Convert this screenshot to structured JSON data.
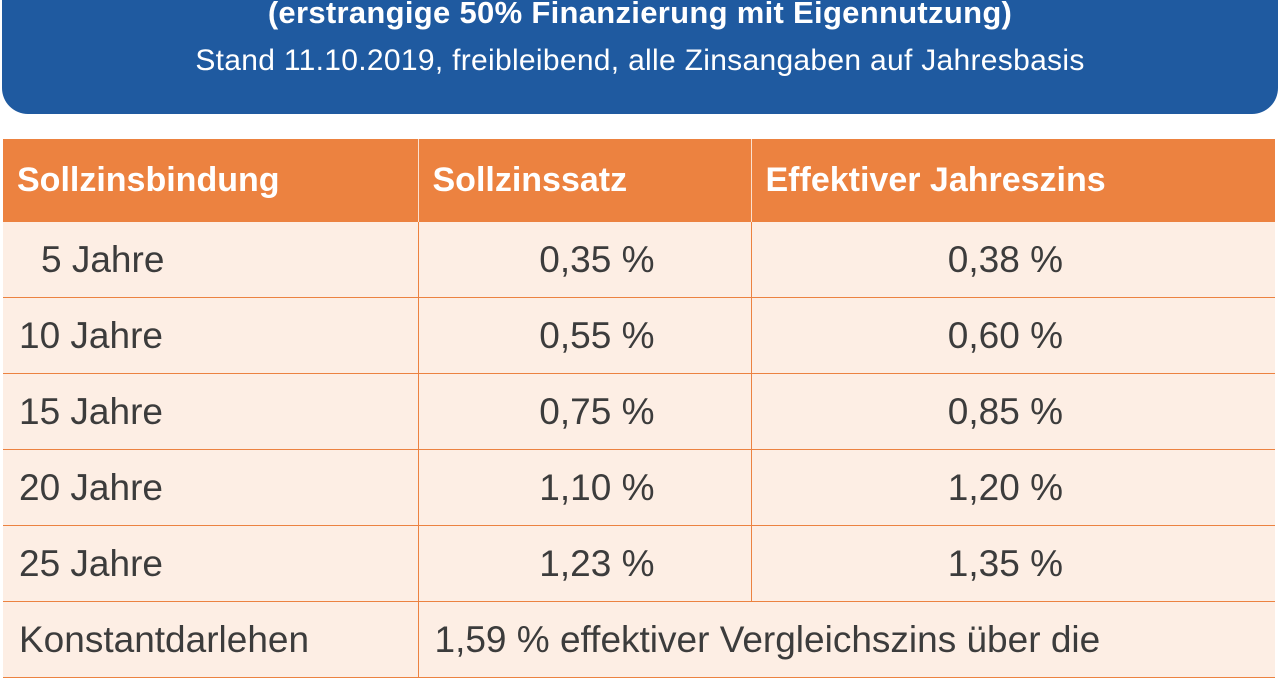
{
  "header": {
    "title": "(erstrangige 50% Finanzierung mit Eigennutzung)",
    "subtitle": "Stand 11.10.2019, freibleibend, alle Zinsangaben auf Jahresbasis"
  },
  "table": {
    "columns": [
      "Sollzinsbindung",
      "Sollzinssatz",
      "Effektiver Jahreszins"
    ],
    "rows": [
      {
        "term": "5 Jahre",
        "rate": "0,35 %",
        "effective": "0,38 %"
      },
      {
        "term": "10 Jahre",
        "rate": "0,55 %",
        "effective": "0,60 %"
      },
      {
        "term": "15 Jahre",
        "rate": "0,75 %",
        "effective": "0,85 %"
      },
      {
        "term": "20 Jahre",
        "rate": "1,10 %",
        "effective": "1,20 %"
      },
      {
        "term": "25 Jahre",
        "rate": "1,23 %",
        "effective": "1,35 %"
      }
    ],
    "footer_row": {
      "label": "Konstantdarlehen",
      "text": "1,59 % effektiver Vergleichszins über die"
    }
  },
  "colors": {
    "banner": "#1f5aa0",
    "header_row": "#ec8240",
    "row_background": "#fdeee4"
  }
}
